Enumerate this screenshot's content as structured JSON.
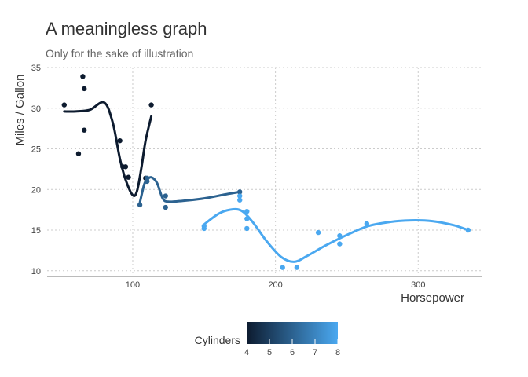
{
  "chart_data": {
    "type": "scatter",
    "title": "A meaningless graph",
    "subtitle": "Only for the sake of illustration",
    "xlabel": "Horsepower",
    "ylabel": "Miles / Gallon",
    "xlim": [
      40,
      345
    ],
    "ylim": [
      9.3,
      35
    ],
    "xticks": [
      100,
      200,
      300
    ],
    "yticks": [
      10,
      15,
      20,
      25,
      30,
      35
    ],
    "grid": true,
    "color_scale": {
      "title": "Cylinders",
      "min": 4,
      "max": 8,
      "ticks": [
        4,
        5,
        6,
        7,
        8
      ],
      "low_color": "#0d1b2f",
      "high_color": "#4aa8f0"
    },
    "points": [
      {
        "x": 52,
        "y": 30.4,
        "cyl": 4
      },
      {
        "x": 62,
        "y": 24.4,
        "cyl": 4
      },
      {
        "x": 65,
        "y": 33.9,
        "cyl": 4
      },
      {
        "x": 66,
        "y": 32.4,
        "cyl": 4
      },
      {
        "x": 66,
        "y": 27.3,
        "cyl": 4
      },
      {
        "x": 91,
        "y": 26.0,
        "cyl": 4
      },
      {
        "x": 93,
        "y": 22.8,
        "cyl": 4
      },
      {
        "x": 95,
        "y": 22.8,
        "cyl": 4
      },
      {
        "x": 97,
        "y": 21.5,
        "cyl": 4
      },
      {
        "x": 109,
        "y": 21.4,
        "cyl": 4
      },
      {
        "x": 113,
        "y": 30.4,
        "cyl": 4
      },
      {
        "x": 105,
        "y": 18.1,
        "cyl": 6
      },
      {
        "x": 110,
        "y": 21.0,
        "cyl": 6
      },
      {
        "x": 110,
        "y": 21.0,
        "cyl": 6
      },
      {
        "x": 110,
        "y": 21.4,
        "cyl": 6
      },
      {
        "x": 123,
        "y": 19.2,
        "cyl": 6
      },
      {
        "x": 123,
        "y": 17.8,
        "cyl": 6
      },
      {
        "x": 175,
        "y": 19.7,
        "cyl": 6
      },
      {
        "x": 150,
        "y": 15.5,
        "cyl": 8
      },
      {
        "x": 150,
        "y": 15.2,
        "cyl": 8
      },
      {
        "x": 175,
        "y": 18.7,
        "cyl": 8
      },
      {
        "x": 175,
        "y": 19.2,
        "cyl": 8
      },
      {
        "x": 180,
        "y": 16.4,
        "cyl": 8
      },
      {
        "x": 180,
        "y": 17.3,
        "cyl": 8
      },
      {
        "x": 180,
        "y": 15.2,
        "cyl": 8
      },
      {
        "x": 205,
        "y": 10.4,
        "cyl": 8
      },
      {
        "x": 215,
        "y": 10.4,
        "cyl": 8
      },
      {
        "x": 230,
        "y": 14.7,
        "cyl": 8
      },
      {
        "x": 245,
        "y": 14.3,
        "cyl": 8
      },
      {
        "x": 245,
        "y": 13.3,
        "cyl": 8
      },
      {
        "x": 264,
        "y": 15.8,
        "cyl": 8
      },
      {
        "x": 335,
        "y": 15.0,
        "cyl": 8
      }
    ],
    "smooth_lines": [
      {
        "cyl": 4,
        "x": [
          52,
          60,
          70,
          80,
          86,
          91,
          95,
          100,
          103,
          106,
          109,
          113
        ],
        "y": [
          29.6,
          29.6,
          29.8,
          30.7,
          28.2,
          23.8,
          21.2,
          19.3,
          19.8,
          22.6,
          26.0,
          29.0
        ]
      },
      {
        "cyl": 6,
        "x": [
          105,
          108,
          110,
          113,
          117,
          121,
          125,
          135,
          150,
          165,
          175
        ],
        "y": [
          18.4,
          20.6,
          21.2,
          21.5,
          20.8,
          18.9,
          18.5,
          18.6,
          18.9,
          19.4,
          19.7
        ]
      },
      {
        "cyl": 8,
        "x": [
          150,
          160,
          168,
          176,
          184,
          194,
          204,
          213,
          222,
          235,
          250,
          265,
          280,
          295,
          310,
          325,
          335
        ],
        "y": [
          15.7,
          17.0,
          17.5,
          17.4,
          16.0,
          13.6,
          11.7,
          11.1,
          11.8,
          13.1,
          14.4,
          15.5,
          16.0,
          16.2,
          16.1,
          15.6,
          15.0
        ]
      }
    ]
  }
}
